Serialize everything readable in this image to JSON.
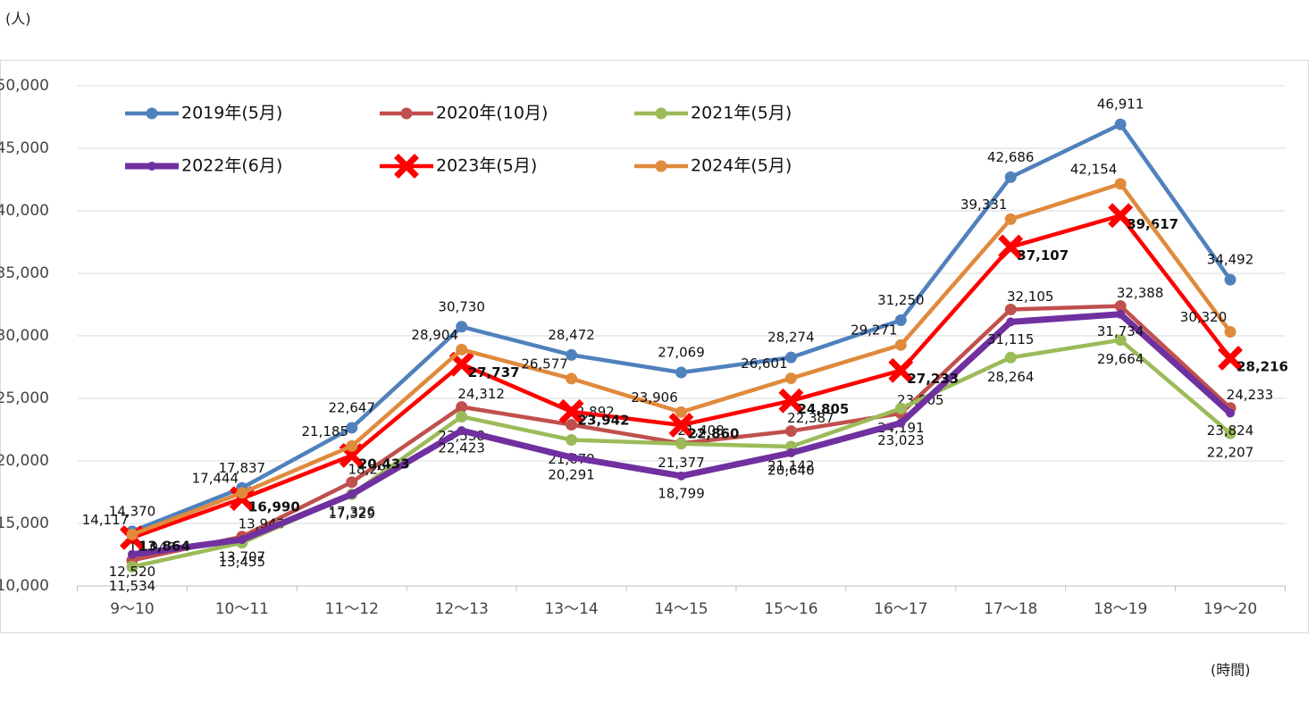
{
  "chart_data": {
    "type": "line",
    "y_unit": "(人)",
    "x_unit": "(時間)",
    "categories": [
      "9〜10",
      "10〜11",
      "11〜12",
      "12〜13",
      "13〜14",
      "14〜15",
      "15〜16",
      "16〜17",
      "17〜18",
      "18〜19",
      "19〜20"
    ],
    "ylim": [
      10000,
      50000
    ],
    "yticks": [
      {
        "value": 10000,
        "label": "10,000"
      },
      {
        "value": 15000,
        "label": "15,000"
      },
      {
        "value": 20000,
        "label": "20,000"
      },
      {
        "value": 25000,
        "label": "25,000"
      },
      {
        "value": 30000,
        "label": "30,000"
      },
      {
        "value": 35000,
        "label": "35,000"
      },
      {
        "value": 40000,
        "label": "40,000"
      },
      {
        "value": 45000,
        "label": "45,000"
      },
      {
        "value": 50000,
        "label": "50,000"
      }
    ],
    "grid": true,
    "series": [
      {
        "name": "2019年(5月)",
        "color": "#4f81bd",
        "marker": "circle",
        "values": [
          14370,
          17837,
          22647,
          30730,
          28472,
          27069,
          28274,
          31250,
          42686,
          46911,
          34492
        ],
        "value_labels": [
          "14,370",
          "17,837",
          "22,647",
          "30,730",
          "28,472",
          "27,069",
          "28,274",
          "31,250",
          "42,686",
          "46,911",
          "34,492"
        ]
      },
      {
        "name": "2020年(10月)",
        "color": "#c0504d",
        "marker": "circle",
        "values": [
          12046,
          13943,
          18299,
          24312,
          22892,
          21408,
          22387,
          23805,
          32105,
          32388,
          24233
        ],
        "value_labels": [
          "12,046",
          "13,943",
          "18,299",
          "24,312",
          "22,892",
          "21,408",
          "22,387",
          "23,805",
          "32,105",
          "32,388",
          "24,233"
        ]
      },
      {
        "name": "2021年(5月)",
        "color": "#9bbb59",
        "marker": "circle",
        "values": [
          11534,
          13455,
          17329,
          23538,
          21679,
          21377,
          21142,
          24191,
          28264,
          29664,
          22207
        ],
        "value_labels": [
          "11,534",
          "13,455",
          "17,329",
          "23,538",
          "21,679",
          "21,377",
          "21,142",
          "24,191",
          "28,264",
          "29,664",
          "22,207"
        ]
      },
      {
        "name": "2022年(6月)",
        "color": "#7030a0",
        "marker": "circle",
        "values": [
          12520,
          13707,
          17326,
          22423,
          20291,
          18799,
          20640,
          23023,
          31115,
          31734,
          23824
        ],
        "value_labels": [
          "12,520",
          "13,707",
          "17,326",
          "22,423",
          "20,291",
          "18,799",
          "20,640",
          "23,023",
          "31,115",
          "31,734",
          "23,824"
        ]
      },
      {
        "name": "2023年(5月)",
        "color": "#ff0000",
        "marker": "x",
        "values": [
          13864,
          16990,
          20433,
          27737,
          23942,
          22860,
          24805,
          27233,
          37107,
          39617,
          28216
        ],
        "value_labels": [
          "13,864",
          "16,990",
          "20,433",
          "27,737",
          "23,942",
          "22,860",
          "24,805",
          "27,233",
          "37,107",
          "39,617",
          "28,216"
        ]
      },
      {
        "name": "2024年(5月)",
        "color": "#e08a3c",
        "marker": "circle",
        "values": [
          14117,
          17444,
          21185,
          28904,
          26577,
          23906,
          26601,
          29271,
          39331,
          42154,
          30320
        ],
        "value_labels": [
          "14,117",
          "17,444",
          "21,185",
          "28,904",
          "26,577",
          "23,906",
          "26,601",
          "29,271",
          "39,331",
          "42,154",
          "30,320"
        ]
      }
    ]
  }
}
